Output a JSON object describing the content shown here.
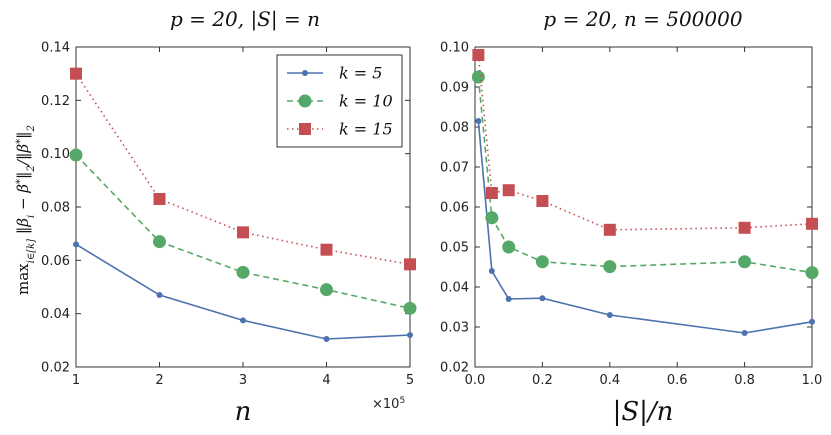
{
  "chart_data": [
    {
      "type": "line",
      "title": "p = 20, |S| = n",
      "xlabel": "n",
      "ylabel": "max_{i∈[k]} ‖β_i − β*_i‖₂ / ‖β*_i‖₂",
      "x_multiplier": "×10",
      "x_multiplier_exp": "5",
      "xlim": [
        1,
        5
      ],
      "ylim": [
        0.02,
        0.14
      ],
      "xticks": [
        "1",
        "2",
        "3",
        "4",
        "5"
      ],
      "yticks": [
        "0.02",
        "0.04",
        "0.06",
        "0.08",
        "0.10",
        "0.12",
        "0.14"
      ],
      "x": [
        1,
        2,
        3,
        4,
        5
      ],
      "series": [
        {
          "name": "k = 5",
          "marker": "dot",
          "dash": "solid",
          "color": "#4c72b0",
          "values": [
            0.066,
            0.047,
            0.0375,
            0.0305,
            0.032
          ]
        },
        {
          "name": "k = 10",
          "marker": "circle",
          "dash": "dashed",
          "color": "#55a868",
          "values": [
            0.0995,
            0.067,
            0.0555,
            0.049,
            0.042
          ]
        },
        {
          "name": "k = 15",
          "marker": "square",
          "dash": "dotted",
          "color": "#c44e52",
          "values": [
            0.13,
            0.083,
            0.0705,
            0.064,
            0.0585
          ]
        }
      ],
      "legend_position": "top-right"
    },
    {
      "type": "line",
      "title": "p = 20, n = 500000",
      "xlabel": "|S|/n",
      "ylabel": "",
      "xlim": [
        0.0,
        1.0
      ],
      "ylim": [
        0.02,
        0.1
      ],
      "xticks": [
        "0.0",
        "0.2",
        "0.4",
        "0.6",
        "0.8",
        "1.0"
      ],
      "yticks": [
        "0.02",
        "0.03",
        "0.04",
        "0.05",
        "0.06",
        "0.07",
        "0.08",
        "0.09",
        "0.10"
      ],
      "x": [
        0.01,
        0.05,
        0.1,
        0.2,
        0.4,
        0.8,
        1.0
      ],
      "series": [
        {
          "name": "k = 5",
          "marker": "dot",
          "dash": "solid",
          "color": "#4c72b0",
          "values": [
            0.0815,
            0.044,
            0.037,
            0.0372,
            0.033,
            0.0285,
            0.0313
          ]
        },
        {
          "name": "k = 10",
          "marker": "circle",
          "dash": "dashed",
          "color": "#55a868",
          "values": [
            0.0925,
            0.0573,
            0.05,
            0.0463,
            0.0451,
            0.0463,
            0.0436
          ]
        },
        {
          "name": "k = 15",
          "marker": "square",
          "dash": "dotted",
          "color": "#c44e52",
          "values": [
            0.098,
            0.0635,
            0.0642,
            0.0615,
            0.0543,
            0.0548,
            0.0558
          ]
        }
      ]
    }
  ]
}
